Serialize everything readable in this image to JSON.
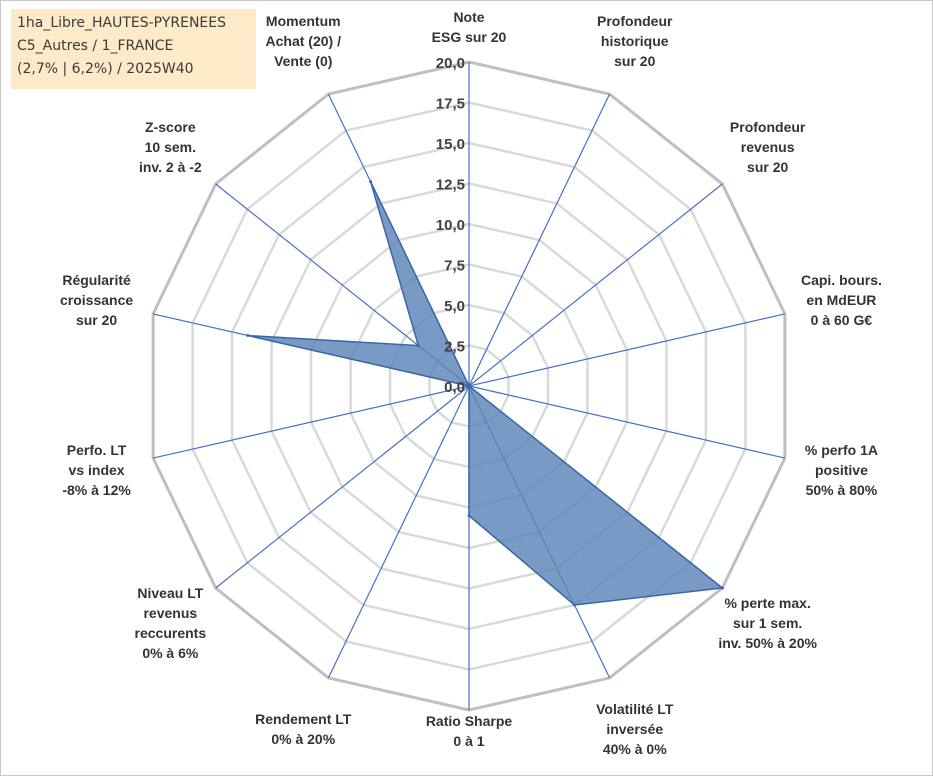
{
  "info_box": {
    "line1": "1ha_Libre_HAUTES-PYRENEES",
    "line2": "C5_Autres / 1_FRANCE",
    "line3": "(2,7% | 6,2%) / 2025W40"
  },
  "chart_data": {
    "type": "radar",
    "title": "",
    "rmax": 20,
    "ticks": [
      0,
      2.5,
      5,
      7.5,
      10,
      12.5,
      15,
      17.5,
      20
    ],
    "tick_labels": [
      "0,0",
      "2,5",
      "5,0",
      "7,5",
      "10,0",
      "12,5",
      "15,0",
      "17,5",
      "20,0"
    ],
    "axes": [
      {
        "label_lines": [
          "Note",
          "ESG sur 20"
        ]
      },
      {
        "label_lines": [
          "Profondeur",
          "historique",
          "sur 20"
        ]
      },
      {
        "label_lines": [
          "Profondeur",
          "revenus",
          "sur 20"
        ]
      },
      {
        "label_lines": [
          "Capi. bours.",
          "en MdEUR",
          "0 à 60 G€"
        ]
      },
      {
        "label_lines": [
          "% perfo 1A",
          "positive",
          "50% à 80%"
        ]
      },
      {
        "label_lines": [
          "% perte max.",
          "sur 1 sem.",
          "inv. 50% à 20%"
        ]
      },
      {
        "label_lines": [
          "Volatilité LT",
          "inversée",
          "40% à 0%"
        ]
      },
      {
        "label_lines": [
          "Ratio Sharpe",
          "0 à 1"
        ]
      },
      {
        "label_lines": [
          "Rendement LT",
          "0% à 20%"
        ]
      },
      {
        "label_lines": [
          "Niveau LT",
          "revenus",
          "reccurents",
          "0% à 6%"
        ]
      },
      {
        "label_lines": [
          "Perfo. LT",
          "vs index",
          "-8% à 12%"
        ]
      },
      {
        "label_lines": [
          "Régularité",
          "croissance",
          "sur 20"
        ]
      },
      {
        "label_lines": [
          "Z-score",
          "10 sem.",
          "inv. 2 à -2"
        ]
      },
      {
        "label_lines": [
          "Momentum",
          "Achat (20) /",
          "Vente (0)"
        ]
      }
    ],
    "series": [
      {
        "values": [
          0,
          0,
          0,
          0,
          0,
          20,
          15,
          8,
          0,
          0,
          0,
          14,
          4,
          14
        ]
      }
    ],
    "colors": {
      "fill": "#5b84b8",
      "fill_opacity": 0.82,
      "series_stroke": "#3a66a8",
      "axis_spoke": "#4472c4",
      "grid_outer": "#bfbfbf",
      "grid_inner": "#d9d9d9",
      "info_box_bg": "#fde9c4"
    },
    "grid": true,
    "legend": "none"
  }
}
